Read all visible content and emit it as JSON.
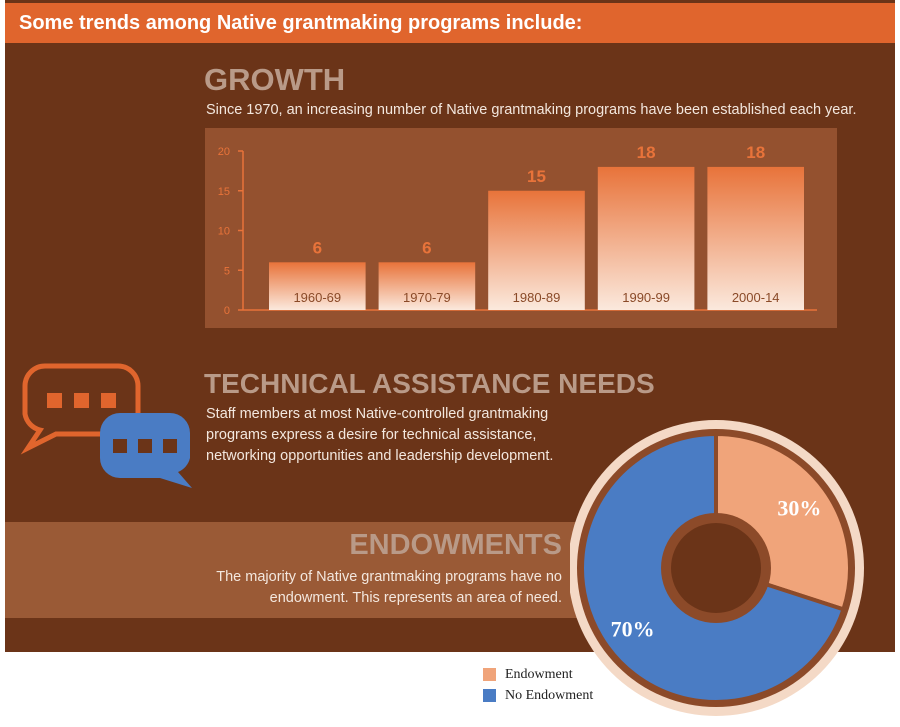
{
  "header": {
    "title": "Some trends among Native grantmaking programs include:"
  },
  "growth": {
    "title": "GROWTH",
    "description": "Since 1970, an increasing number of Native grantmaking programs have been established each year."
  },
  "technical_assistance": {
    "title": "TECHNICAL ASSISTANCE NEEDS",
    "description": "Staff members at most Native-controlled grantmaking programs express a desire for technical assistance, networking opportunities and leadership development."
  },
  "endowments": {
    "title": "ENDOWMENTS",
    "description": "The majority of Native grantmaking programs have no endowment. This represents an area of need."
  },
  "chart_data": [
    {
      "type": "bar",
      "categories": [
        "1960-69",
        "1970-79",
        "1980-89",
        "1990-99",
        "2000-14"
      ],
      "values": [
        6,
        6,
        15,
        18,
        18
      ],
      "ylim": [
        0,
        20
      ],
      "yticks": [
        0,
        5,
        10,
        15,
        20
      ],
      "grid": false,
      "data_labels": true,
      "colors": {
        "bar_top": "#e8733a",
        "bar_bottom": "#fbe9dd",
        "value_label": "#e8733a",
        "axis": "#e8733a",
        "panel": "#94512f"
      }
    },
    {
      "type": "pie",
      "donut": true,
      "series": [
        {
          "name": "Endowment",
          "value": 30,
          "label": "30%",
          "color": "#f0a47a"
        },
        {
          "name": "No Endowment",
          "value": 70,
          "label": "70%",
          "color": "#4a7cc4"
        }
      ],
      "legend": "bottom-left"
    }
  ],
  "icons": {
    "chat_left": "speech-bubble-icon",
    "chat_right": "speech-bubble-icon"
  },
  "colors": {
    "accent": "#e0652d",
    "background": "#6b3418",
    "blue": "#4a7cc4"
  }
}
